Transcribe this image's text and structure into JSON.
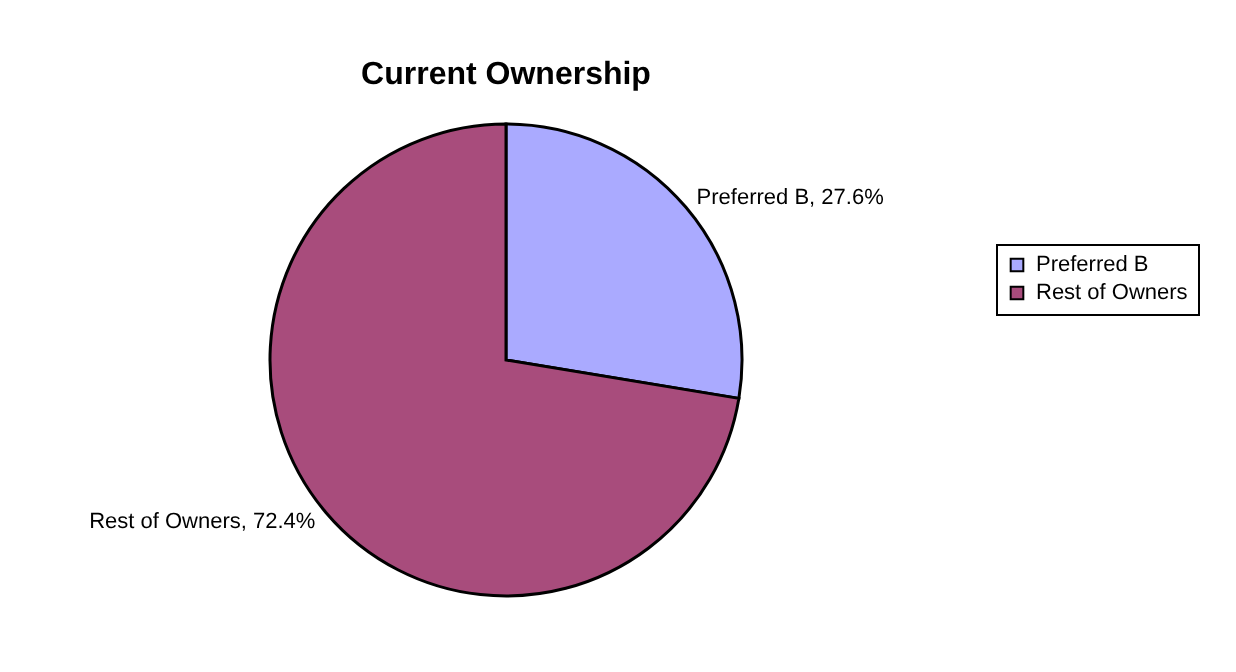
{
  "chart_data": {
    "type": "pie",
    "title": "Current Ownership",
    "categories": [
      "Preferred B",
      "Rest of Owners"
    ],
    "values": [
      27.6,
      72.4
    ],
    "value_labels": [
      "Preferred B, 27.6%",
      "Rest of Owners, 72.4%"
    ],
    "colors": [
      "#aaaaff",
      "#a84c7c"
    ],
    "legend": "right"
  }
}
